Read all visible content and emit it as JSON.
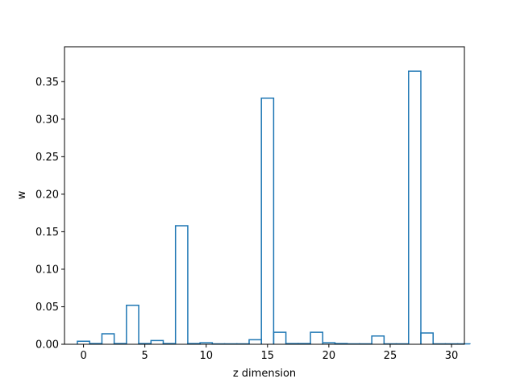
{
  "chart_data": {
    "type": "bar",
    "style": "step-outline",
    "color": "#1f77b4",
    "x": [
      0,
      1,
      2,
      3,
      4,
      5,
      6,
      7,
      8,
      9,
      10,
      11,
      12,
      13,
      14,
      15,
      16,
      17,
      18,
      19,
      20,
      21,
      22,
      23,
      24,
      25,
      26,
      27,
      28,
      29,
      30,
      31
    ],
    "values": [
      0.004,
      0.001,
      0.014,
      0.001,
      0.052,
      0.001,
      0.005,
      0.001,
      0.158,
      0.001,
      0.002,
      0.0005,
      0.0005,
      0.0005,
      0.006,
      0.328,
      0.016,
      0.001,
      0.001,
      0.016,
      0.002,
      0.001,
      0.0005,
      0.0005,
      0.011,
      0.0005,
      0.0005,
      0.364,
      0.015,
      0.0005,
      0.0005,
      0.0005
    ],
    "xlabel": "z dimension",
    "ylabel": "w",
    "xlim": [
      -1.55,
      31.05
    ],
    "ylim": [
      0.0,
      0.3965
    ],
    "xticks": [
      0,
      5,
      10,
      15,
      20,
      25,
      30
    ],
    "xtick_labels": [
      "0",
      "5",
      "10",
      "15",
      "20",
      "25",
      "30"
    ],
    "yticks": [
      0.0,
      0.05,
      0.1,
      0.15,
      0.2,
      0.25,
      0.3,
      0.35
    ],
    "ytick_labels": [
      "0.00",
      "0.05",
      "0.10",
      "0.15",
      "0.20",
      "0.25",
      "0.30",
      "0.35"
    ],
    "grid": false,
    "legend": "none"
  }
}
